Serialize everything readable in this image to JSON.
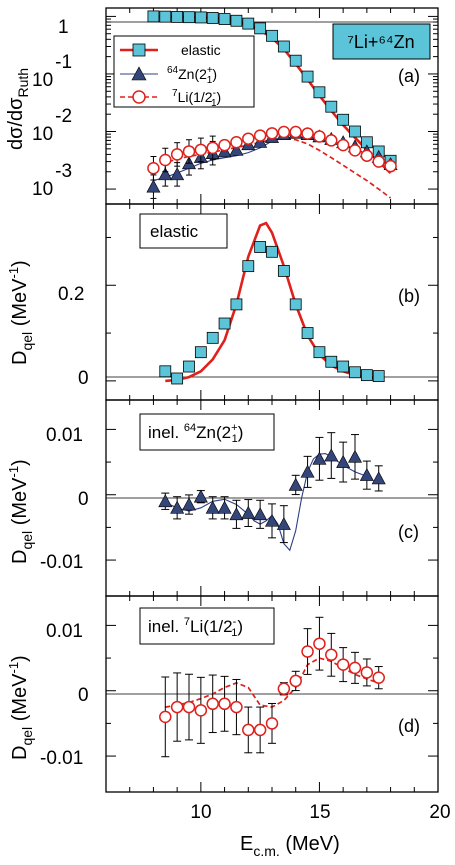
{
  "figure": {
    "system_label": "⁷Li+⁶⁴Zn",
    "system_box_color": "#5bc4d8",
    "xlabel": "E",
    "xlabel_sub": "c.m.",
    "xlabel_unit": " (MeV)",
    "x_ticks": [
      "10",
      "15",
      "20"
    ]
  },
  "colors": {
    "elastic": "#e0201b",
    "zn": "#2f3f86",
    "li": "#e0201b",
    "square_fill": "#5bc4d8",
    "triangle_fill": "#34457a"
  },
  "panel_a": {
    "tag": "(a)",
    "ylabel": "dσ/dσ",
    "ylabel_sub": "Ruth",
    "y_ticks": [
      {
        "mant": "1",
        "exp": ""
      },
      {
        "mant": "10",
        "exp": "-1"
      },
      {
        "mant": "10",
        "exp": "-2"
      },
      {
        "mant": "10",
        "exp": "-3"
      }
    ],
    "legend": [
      {
        "label": "elastic",
        "sup": "",
        "sub": "",
        "tail": ""
      },
      {
        "label": "Zn(2",
        "pre_sup": "64",
        "sup": "+",
        "sub": "1",
        "tail": ")"
      },
      {
        "label": "Li(1/2",
        "pre_sup": "7",
        "sup": "-",
        "sub": "1",
        "tail": ")"
      }
    ]
  },
  "panel_b": {
    "tag": "(b)",
    "box": "elastic",
    "y_ticks": [
      "0.2",
      "0"
    ]
  },
  "panel_c": {
    "tag": "(c)",
    "box_pre": "inel. ",
    "box_sup1": "64",
    "box_main": "Zn(2",
    "box_sup2": "+",
    "box_sub": "1",
    "box_tail": ")",
    "y_ticks": [
      "0.01",
      "0",
      "-0.01"
    ]
  },
  "panel_d": {
    "tag": "(d)",
    "box_pre": "inel. ",
    "box_sup1": "7",
    "box_main": "Li(1/2",
    "box_sup2": "-",
    "box_sub": "1",
    "box_tail": ")",
    "y_ticks": [
      "0.01",
      "0",
      "-0.01"
    ]
  },
  "dqel_label": {
    "main": "D",
    "sub": "qel",
    "unit": " (MeV",
    "exp": "-1",
    "close": ")"
  },
  "chart_data": [
    {
      "type": "scatter",
      "title": "(a)",
      "ylabel": "dσ/dσ_Ruth",
      "y_scale": "log",
      "ylim": [
        0.00055,
        1.4
      ],
      "xlim": [
        6,
        20
      ],
      "series": [
        {
          "name": "elastic",
          "marker": "square",
          "x": [
            8.0,
            8.5,
            9.0,
            9.5,
            10.0,
            10.5,
            11.0,
            11.5,
            12.0,
            12.5,
            13.0,
            13.5,
            14.0,
            14.5,
            15.0,
            15.5,
            16.0,
            16.5,
            17.0,
            17.5,
            18.0
          ],
          "y": [
            1.0,
            0.99,
            0.98,
            0.97,
            0.96,
            0.94,
            0.9,
            0.84,
            0.75,
            0.62,
            0.46,
            0.3,
            0.17,
            0.09,
            0.048,
            0.027,
            0.016,
            0.01,
            0.0065,
            0.0045,
            0.0031
          ]
        },
        {
          "name": "⁶⁴Zn(2⁺₁)",
          "marker": "triangle",
          "x": [
            8.0,
            8.5,
            9.0,
            9.5,
            10.0,
            10.5,
            11.0,
            11.5,
            12.0,
            12.5,
            13.0,
            13.5,
            14.0,
            14.5,
            15.0,
            15.5,
            16.0,
            16.5,
            17.0,
            17.5,
            18.0
          ],
          "y": [
            0.0011,
            0.0018,
            0.0018,
            0.0028,
            0.0036,
            0.0042,
            0.0045,
            0.0048,
            0.006,
            0.0066,
            0.008,
            0.009,
            0.0095,
            0.009,
            0.0082,
            0.0074,
            0.0065,
            0.0055,
            0.0045,
            0.0036,
            0.0027
          ]
        },
        {
          "name": "⁷Li(1/2⁻₁)",
          "marker": "circle",
          "x": [
            8.0,
            8.5,
            9.0,
            9.5,
            10.0,
            10.5,
            11.0,
            11.5,
            12.0,
            12.5,
            13.0,
            13.5,
            14.0,
            14.5,
            15.0,
            15.5,
            16.0,
            16.5,
            17.0,
            17.5,
            18.0
          ],
          "y": [
            0.0023,
            0.0032,
            0.004,
            0.0045,
            0.0048,
            0.0052,
            0.0058,
            0.0065,
            0.0075,
            0.0085,
            0.0093,
            0.0098,
            0.0098,
            0.0092,
            0.0082,
            0.007,
            0.0058,
            0.0047,
            0.0038,
            0.003,
            0.0025
          ]
        },
        {
          "name": "elastic",
          "line": "solid",
          "x": [
            8,
            9,
            10,
            11,
            11.5,
            12,
            12.5,
            13,
            13.5,
            14,
            14.5,
            15,
            15.5,
            16,
            16.5,
            17,
            17.5,
            18
          ],
          "y": [
            1.0,
            0.99,
            0.96,
            0.9,
            0.83,
            0.72,
            0.58,
            0.42,
            0.27,
            0.15,
            0.08,
            0.042,
            0.023,
            0.013,
            0.0078,
            0.0048,
            0.003,
            0.0019
          ]
        },
        {
          "name": "⁶⁴Zn(2⁺₁)",
          "line": "solid_thin",
          "x": [
            8,
            8.5,
            9,
            9.5,
            10,
            10.5,
            11,
            11.5,
            12,
            12.5,
            13,
            13.5,
            14,
            14.5,
            15,
            15.5,
            16,
            16.5,
            17,
            17.5,
            18
          ],
          "y": [
            0.0014,
            0.0016,
            0.0019,
            0.0023,
            0.0028,
            0.0032,
            0.0035,
            0.0038,
            0.0043,
            0.0052,
            0.0068,
            0.0083,
            0.009,
            0.0087,
            0.0079,
            0.007,
            0.006,
            0.005,
            0.004,
            0.0032,
            0.0026
          ]
        },
        {
          "name": "⁷Li(1/2⁻₁)",
          "line": "dashed",
          "x": [
            8,
            8.5,
            9,
            9.5,
            10,
            10.5,
            11,
            11.5,
            12,
            12.5,
            13,
            13.5,
            14,
            14.5,
            15,
            15.5,
            16,
            16.5,
            17,
            17.5,
            18
          ],
          "y": [
            0.0024,
            0.0029,
            0.0033,
            0.0037,
            0.004,
            0.0044,
            0.0048,
            0.0053,
            0.0058,
            0.0065,
            0.0072,
            0.0076,
            0.0072,
            0.0061,
            0.0047,
            0.0035,
            0.0026,
            0.0019,
            0.0014,
            0.001,
            0.0007
          ]
        }
      ]
    },
    {
      "type": "scatter",
      "title": "(b)",
      "ylabel": "D_qel (MeV⁻¹)",
      "ylim": [
        -0.04,
        0.37
      ],
      "xlim": [
        6,
        20
      ],
      "series": [
        {
          "name": "elastic",
          "marker": "square",
          "x": [
            8.5,
            9.0,
            9.5,
            10.0,
            10.5,
            11.0,
            11.5,
            12.0,
            12.5,
            13.0,
            13.5,
            14.0,
            14.5,
            15.0,
            15.5,
            16.0,
            16.5,
            17.0,
            17.5
          ],
          "y": [
            0.02,
            0.005,
            0.03,
            0.06,
            0.09,
            0.12,
            0.16,
            0.24,
            0.28,
            0.27,
            0.23,
            0.16,
            0.1,
            0.06,
            0.04,
            0.03,
            0.018,
            0.012,
            0.01
          ]
        },
        {
          "name": "elastic",
          "line": "solid",
          "x": [
            8.5,
            9,
            9.5,
            10,
            10.5,
            11,
            11.5,
            12,
            12.5,
            12.75,
            13,
            13.5,
            14,
            14.5,
            15,
            15.5,
            16,
            16.5,
            17,
            17.5
          ],
          "y": [
            0.0,
            0.002,
            0.008,
            0.02,
            0.045,
            0.085,
            0.16,
            0.26,
            0.325,
            0.33,
            0.31,
            0.24,
            0.16,
            0.095,
            0.055,
            0.032,
            0.02,
            0.012,
            0.008,
            0.006
          ]
        }
      ]
    },
    {
      "type": "scatter",
      "title": "(c)",
      "ylabel": "D_qel (MeV⁻¹)",
      "ylim": [
        -0.0155,
        0.0145
      ],
      "xlim": [
        6,
        20
      ],
      "series": [
        {
          "name": "⁶⁴Zn(2⁺₁)",
          "marker": "triangle",
          "x": [
            8.5,
            9.0,
            9.5,
            10.0,
            10.5,
            11.0,
            11.5,
            12.0,
            12.5,
            13.0,
            13.5,
            14.0,
            14.5,
            15.0,
            15.5,
            16.0,
            16.5,
            17.0,
            17.5
          ],
          "y": [
            -0.001,
            -0.002,
            -0.0015,
            -0.0003,
            -0.002,
            -0.002,
            -0.003,
            -0.0028,
            -0.003,
            -0.004,
            -0.0045,
            0.0015,
            0.0035,
            0.0055,
            0.006,
            0.005,
            0.0058,
            0.003,
            0.0025
          ]
        },
        {
          "name": "⁶⁴Zn(2⁺₁)",
          "line": "solid_thin",
          "x": [
            8.5,
            9,
            9.5,
            10,
            10.5,
            11,
            11.5,
            12,
            12.25,
            12.5,
            12.75,
            13,
            13.25,
            13.5,
            13.75,
            14,
            14.25,
            14.5,
            14.75,
            15,
            15.25,
            15.5,
            16,
            16.5,
            17
          ],
          "y": [
            -0.0012,
            -0.002,
            -0.0025,
            -0.002,
            -0.001,
            -0.0007,
            -0.0015,
            -0.003,
            -0.004,
            -0.0045,
            -0.004,
            -0.0032,
            -0.0045,
            -0.0075,
            -0.0085,
            -0.0055,
            -0.0005,
            0.0035,
            0.0055,
            0.0062,
            0.0063,
            0.0058,
            0.0045,
            0.0035,
            0.0028
          ]
        }
      ]
    },
    {
      "type": "scatter",
      "title": "(d)",
      "ylabel": "D_qel (MeV⁻¹)",
      "ylim": [
        -0.0155,
        0.0145
      ],
      "xlim": [
        6,
        20
      ],
      "series": [
        {
          "name": "⁷Li(1/2⁻₁)",
          "marker": "circle",
          "x": [
            8.5,
            9.0,
            9.5,
            10.0,
            10.5,
            11.0,
            11.5,
            12.0,
            12.5,
            13.0,
            13.5,
            14.0,
            14.5,
            15.0,
            15.5,
            16.0,
            16.5,
            17.0,
            17.5
          ],
          "y": [
            -0.004,
            -0.0025,
            -0.0025,
            -0.003,
            -0.002,
            -0.002,
            -0.0025,
            -0.006,
            -0.006,
            -0.005,
            0.0003,
            0.0015,
            0.006,
            0.0072,
            0.0055,
            0.004,
            0.0035,
            0.0028,
            0.002
          ]
        },
        {
          "name": "⁷Li(1/2⁻₁)",
          "line": "dashed",
          "x": [
            8.5,
            9,
            9.5,
            10,
            10.5,
            11,
            11.5,
            12,
            12.5,
            13,
            13.5,
            14,
            14.5,
            15,
            15.5,
            16,
            16.5,
            17,
            17.5
          ],
          "y": [
            -0.0025,
            -0.0022,
            -0.0018,
            -0.0012,
            -0.0005,
            0.0005,
            0.0012,
            0.0005,
            -0.0022,
            -0.0025,
            -0.0015,
            0.0005,
            0.004,
            0.005,
            0.0045,
            0.0035,
            0.0025,
            0.0018,
            0.0012
          ]
        }
      ]
    }
  ]
}
